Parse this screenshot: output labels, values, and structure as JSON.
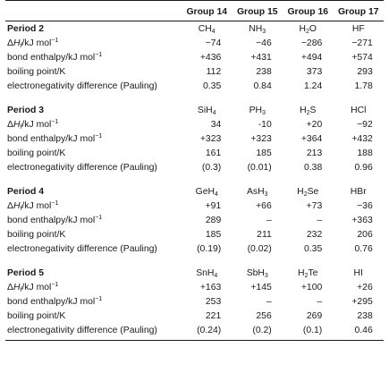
{
  "columns": [
    "Group 14",
    "Group 15",
    "Group 16",
    "Group 17"
  ],
  "row_labels": {
    "dh": {
      "delta": "Δ",
      "H": "H",
      "sub": "f",
      "unit": "/kJ mol",
      "exp": "−1"
    },
    "bond": {
      "text": "bond enthalpy/kJ mol",
      "exp": "−1"
    },
    "bp": "boiling point/K",
    "en": "electronegativity difference (Pauling)"
  },
  "periods": [
    {
      "title": "Period 2",
      "compounds": [
        {
          "base": "CH",
          "sub": "4"
        },
        {
          "base": "NH",
          "sub": "3"
        },
        {
          "base": "H",
          "sub": "2",
          "tail": "O"
        },
        {
          "base": "HF",
          "sub": ""
        }
      ],
      "dh": [
        "−74",
        "−46",
        "−286",
        "−271"
      ],
      "bond": [
        "+436",
        "+431",
        "+494",
        "+574"
      ],
      "bp": [
        "112",
        "238",
        "373",
        "293"
      ],
      "en": [
        "0.35",
        "0.84",
        "1.24",
        "1.78"
      ]
    },
    {
      "title": "Period 3",
      "compounds": [
        {
          "base": "SiH",
          "sub": "4"
        },
        {
          "base": "PH",
          "sub": "3"
        },
        {
          "base": "H",
          "sub": "2",
          "tail": "S"
        },
        {
          "base": "HCl",
          "sub": ""
        }
      ],
      "dh": [
        "34",
        "-10",
        "+20",
        "−92"
      ],
      "bond": [
        "+323",
        "+323",
        "+364",
        "+432"
      ],
      "bp": [
        "161",
        "185",
        "213",
        "188"
      ],
      "en": [
        "(0.3)",
        "(0.01)",
        "0.38",
        "0.96"
      ]
    },
    {
      "title": "Period 4",
      "compounds": [
        {
          "base": "GeH",
          "sub": "4"
        },
        {
          "base": "AsH",
          "sub": "3"
        },
        {
          "base": "H",
          "sub": "2",
          "tail": "Se"
        },
        {
          "base": "HBr",
          "sub": ""
        }
      ],
      "dh": [
        "+91",
        "+66",
        "+73",
        "−36"
      ],
      "bond": [
        "289",
        "–",
        "–",
        "+363"
      ],
      "bp": [
        "185",
        "211",
        "232",
        "206"
      ],
      "en": [
        "(0.19)",
        "(0.02)",
        "0.35",
        "0.76"
      ]
    },
    {
      "title": "Period 5",
      "compounds": [
        {
          "base": "SnH",
          "sub": "4"
        },
        {
          "base": "SbH",
          "sub": "3"
        },
        {
          "base": "H",
          "sub": "2",
          "tail": "Te"
        },
        {
          "base": "HI",
          "sub": ""
        }
      ],
      "dh": [
        "+163",
        "+145",
        "+100",
        "+26"
      ],
      "bond": [
        "253",
        "–",
        "–",
        "+295"
      ],
      "bp": [
        "221",
        "256",
        "269",
        "238"
      ],
      "en": [
        "(0.24)",
        "(0.2)",
        "(0.1)",
        "0.46"
      ]
    }
  ]
}
